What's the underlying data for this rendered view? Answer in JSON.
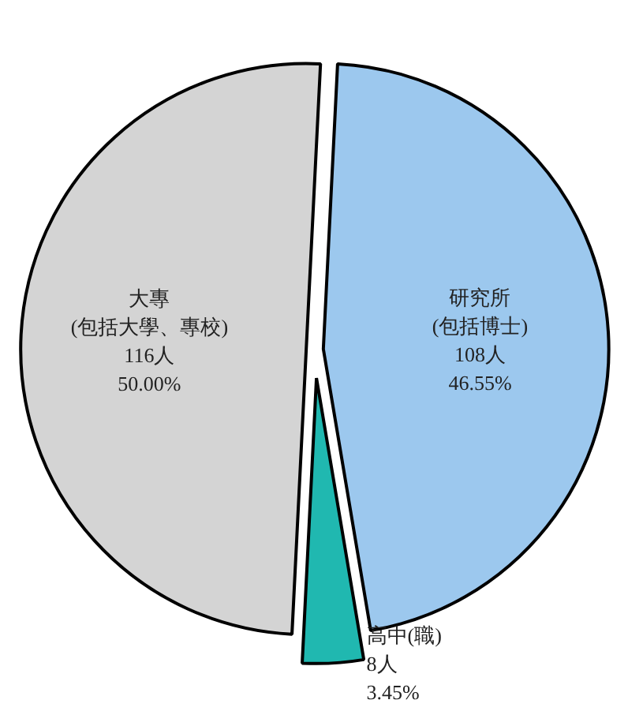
{
  "chart_data": {
    "type": "pie",
    "categories": [
      "研究所\n(包括博士)",
      "高中(職)",
      "大專\n(包括大學、專校)"
    ],
    "values": [
      108,
      8,
      116
    ],
    "colors": [
      "#9cc8ee",
      "#20b8b0",
      "#d4d4d4"
    ],
    "value_labels": [
      "108人\n46.55%",
      "8人\n3.45%",
      "116人\n50.00%"
    ]
  }
}
